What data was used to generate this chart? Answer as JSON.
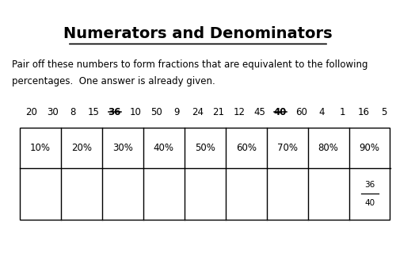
{
  "title": "Numerators and Denominators",
  "instruction_line1": "Pair off these numbers to form fractions that are equivalent to the following",
  "instruction_line2": "percentages.  One answer is already given.",
  "numbers": [
    "20",
    "30",
    "8",
    "15",
    "36",
    "10",
    "50",
    "9",
    "24",
    "21",
    "12",
    "45",
    "40",
    "60",
    "4",
    "1",
    "16",
    "5"
  ],
  "strikethrough_indices": [
    4,
    12
  ],
  "percentages": [
    "10%",
    "20%",
    "30%",
    "40%",
    "50%",
    "60%",
    "70%",
    "80%",
    "90%"
  ],
  "answer_col": 8,
  "answer_numerator": "36",
  "answer_denominator": "40",
  "bg_color": "#ffffff",
  "text_color": "#000000"
}
